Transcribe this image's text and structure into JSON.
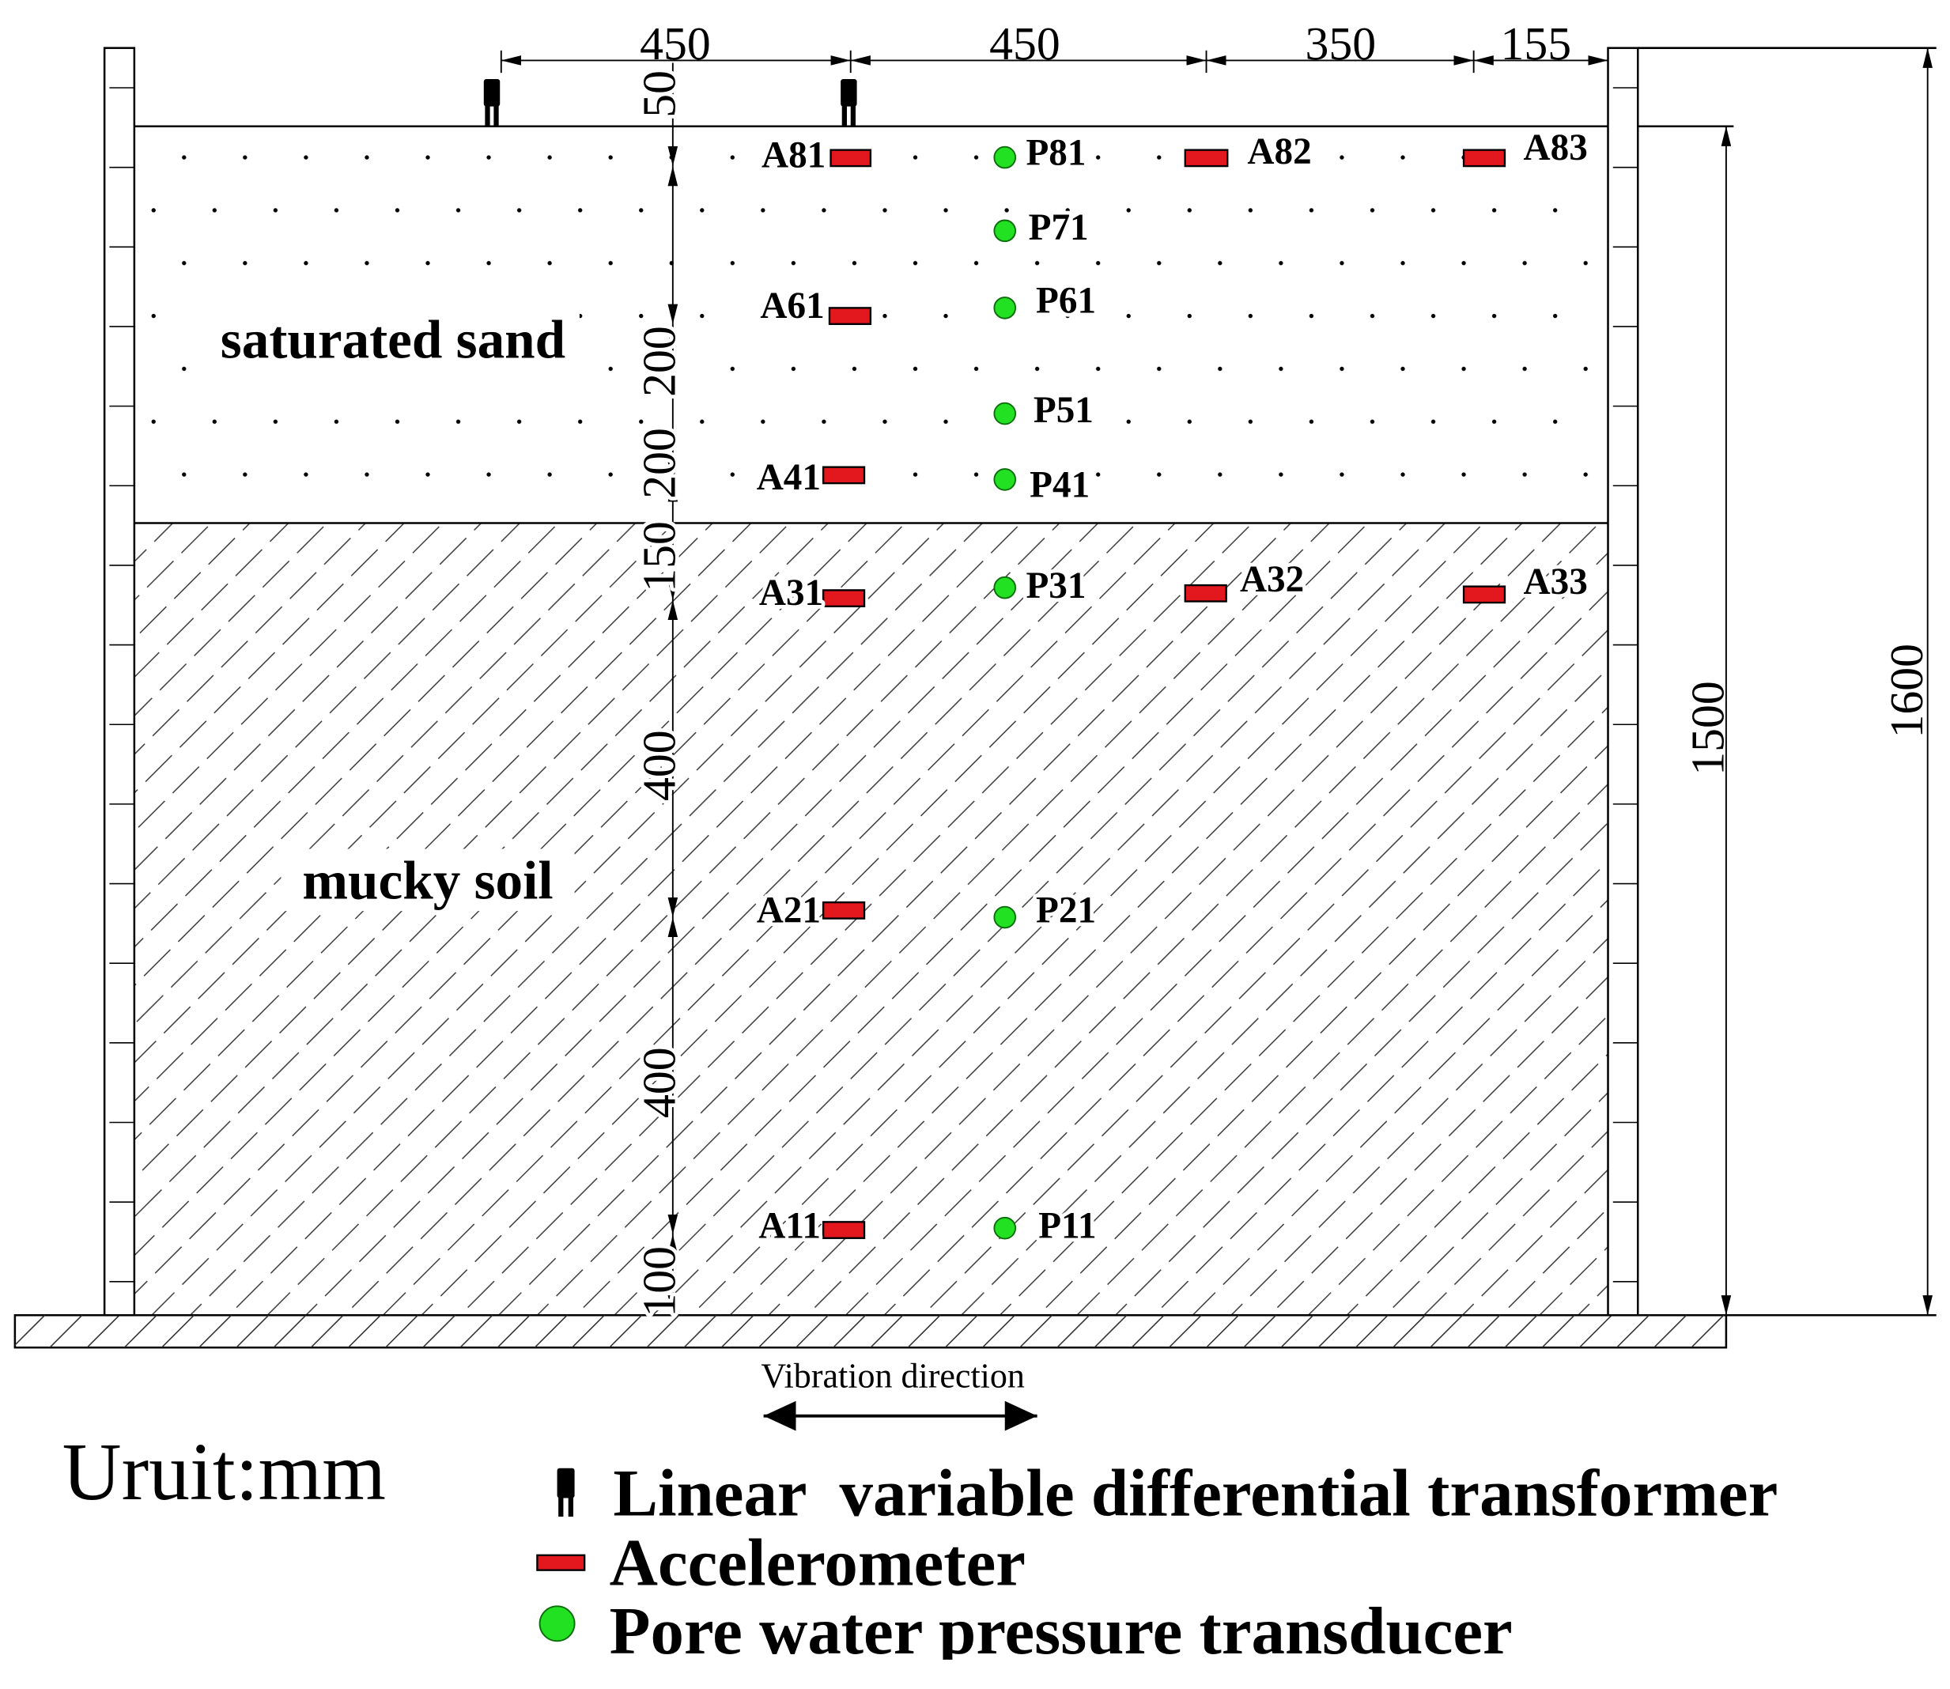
{
  "dimensions": {
    "top": [
      "450",
      "450",
      "350",
      "155"
    ],
    "depth": [
      "50",
      "200",
      "200",
      "150",
      "400",
      "400",
      "100"
    ],
    "saturated_height": "1500",
    "box_height": "1600"
  },
  "layers": {
    "sand": "saturated sand",
    "mucky": "mucky soil"
  },
  "accelerometers": [
    "A81",
    "A82",
    "A83",
    "A61",
    "A41",
    "A31",
    "A32",
    "A33",
    "A21",
    "A11"
  ],
  "pore_pressure_transducers": [
    "P81",
    "P71",
    "P61",
    "P51",
    "P41",
    "P31",
    "P21",
    "P11"
  ],
  "vibration": {
    "label": "Vibration direction"
  },
  "unit": "Uruit:mm",
  "legend": {
    "lvdt": "Linear  variable differential transformer",
    "accelerometer": "Accelerometer",
    "pore_pressure": "Pore water pressure transducer"
  },
  "colors": {
    "accelerometer": "#e3171e",
    "pore_pressure": "#22e022"
  }
}
